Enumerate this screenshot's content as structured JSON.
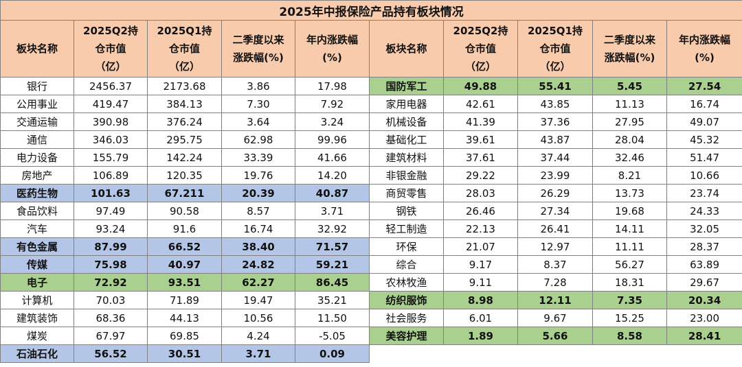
{
  "title": "2025年中报保险产品持有板块情况",
  "headers": [
    [
      "板块名称"
    ],
    [
      "2025Q2持",
      "仓市值",
      "（亿）"
    ],
    [
      "2025Q1持",
      "仓市值",
      "（亿）"
    ],
    [
      "二季度以来",
      "涨跌幅(%)"
    ],
    [
      "年内涨跌幅",
      "(%)"
    ],
    [
      "板块名称"
    ],
    [
      "2025Q2持",
      "仓市值",
      "（亿）"
    ],
    [
      "2025Q1持",
      "仓市值",
      "（亿）"
    ],
    [
      "二季度以来",
      "涨跌幅(%)"
    ],
    [
      "年内涨跌幅",
      "(%)"
    ]
  ],
  "colors": {
    "header": "#f8cbad",
    "blue": "#b4c6e7",
    "green": "#a9d08e"
  },
  "left_rows": [
    {
      "name": "银行",
      "q2": "2456.37",
      "q1": "2173.68",
      "chg": "3.86",
      "ytd": "17.98",
      "hl": ""
    },
    {
      "name": "公用事业",
      "q2": "419.47",
      "q1": "384.13",
      "chg": "7.30",
      "ytd": "7.92",
      "hl": ""
    },
    {
      "name": "交通运输",
      "q2": "390.98",
      "q1": "376.24",
      "chg": "3.64",
      "ytd": "3.24",
      "hl": ""
    },
    {
      "name": "通信",
      "q2": "346.03",
      "q1": "295.75",
      "chg": "62.98",
      "ytd": "99.96",
      "hl": ""
    },
    {
      "name": "电力设备",
      "q2": "155.79",
      "q1": "142.24",
      "chg": "33.39",
      "ytd": "41.66",
      "hl": ""
    },
    {
      "name": "房地产",
      "q2": "106.89",
      "q1": "120.35",
      "chg": "19.76",
      "ytd": "14.20",
      "hl": ""
    },
    {
      "name": "医药生物",
      "q2": "101.63",
      "q1": "67.211",
      "chg": "20.39",
      "ytd": "40.87",
      "hl": "blue"
    },
    {
      "name": "食品饮料",
      "q2": "97.49",
      "q1": "90.58",
      "chg": "8.57",
      "ytd": "3.71",
      "hl": ""
    },
    {
      "name": "汽车",
      "q2": "93.24",
      "q1": "91.6",
      "chg": "16.74",
      "ytd": "32.92",
      "hl": ""
    },
    {
      "name": "有色金属",
      "q2": "87.99",
      "q1": "66.52",
      "chg": "38.40",
      "ytd": "71.57",
      "hl": "blue"
    },
    {
      "name": "传媒",
      "q2": "75.98",
      "q1": "40.97",
      "chg": "24.82",
      "ytd": "59.21",
      "hl": "blue"
    },
    {
      "name": "电子",
      "q2": "72.92",
      "q1": "93.51",
      "chg": "62.27",
      "ytd": "86.45",
      "hl": "green"
    },
    {
      "name": "计算机",
      "q2": "70.03",
      "q1": "71.89",
      "chg": "19.47",
      "ytd": "35.21",
      "hl": ""
    },
    {
      "name": "建筑装饰",
      "q2": "68.36",
      "q1": "44.13",
      "chg": "10.56",
      "ytd": "11.50",
      "hl": ""
    },
    {
      "name": "煤炭",
      "q2": "67.97",
      "q1": "69.85",
      "chg": "4.24",
      "ytd": "-5.05",
      "hl": ""
    },
    {
      "name": "石油石化",
      "q2": "56.52",
      "q1": "30.51",
      "chg": "3.71",
      "ytd": "0.09",
      "hl": "blue"
    }
  ],
  "right_rows": [
    {
      "name": "国防军工",
      "q2": "49.88",
      "q1": "55.41",
      "chg": "5.45",
      "ytd": "27.54",
      "hl": "green"
    },
    {
      "name": "家用电器",
      "q2": "42.61",
      "q1": "43.85",
      "chg": "11.13",
      "ytd": "16.74",
      "hl": ""
    },
    {
      "name": "机械设备",
      "q2": "41.39",
      "q1": "37.36",
      "chg": "27.95",
      "ytd": "49.07",
      "hl": ""
    },
    {
      "name": "基础化工",
      "q2": "39.61",
      "q1": "43.87",
      "chg": "28.04",
      "ytd": "45.32",
      "hl": ""
    },
    {
      "name": "建筑材料",
      "q2": "37.61",
      "q1": "37.44",
      "chg": "32.46",
      "ytd": "51.47",
      "hl": ""
    },
    {
      "name": "非银金融",
      "q2": "29.22",
      "q1": "23.99",
      "chg": "8.21",
      "ytd": "10.66",
      "hl": ""
    },
    {
      "name": "商贸零售",
      "q2": "28.03",
      "q1": "26.29",
      "chg": "13.73",
      "ytd": "23.74",
      "hl": ""
    },
    {
      "name": "钢铁",
      "q2": "26.46",
      "q1": "27.34",
      "chg": "19.68",
      "ytd": "24.33",
      "hl": ""
    },
    {
      "name": "轻工制造",
      "q2": "22.13",
      "q1": "26.41",
      "chg": "14.11",
      "ytd": "32.05",
      "hl": ""
    },
    {
      "name": "环保",
      "q2": "21.07",
      "q1": "12.97",
      "chg": "11.11",
      "ytd": "28.37",
      "hl": ""
    },
    {
      "name": "综合",
      "q2": "9.17",
      "q1": "8.37",
      "chg": "56.27",
      "ytd": "63.89",
      "hl": ""
    },
    {
      "name": "农林牧渔",
      "q2": "9.11",
      "q1": "7.28",
      "chg": "18.31",
      "ytd": "29.67",
      "hl": ""
    },
    {
      "name": "纺织服饰",
      "q2": "8.98",
      "q1": "12.11",
      "chg": "7.35",
      "ytd": "20.34",
      "hl": "green"
    },
    {
      "name": "社会服务",
      "q2": "6.01",
      "q1": "9.67",
      "chg": "15.25",
      "ytd": "23.00",
      "hl": ""
    },
    {
      "name": "美容护理",
      "q2": "1.89",
      "q1": "5.66",
      "chg": "8.58",
      "ytd": "28.41",
      "hl": "green"
    }
  ]
}
